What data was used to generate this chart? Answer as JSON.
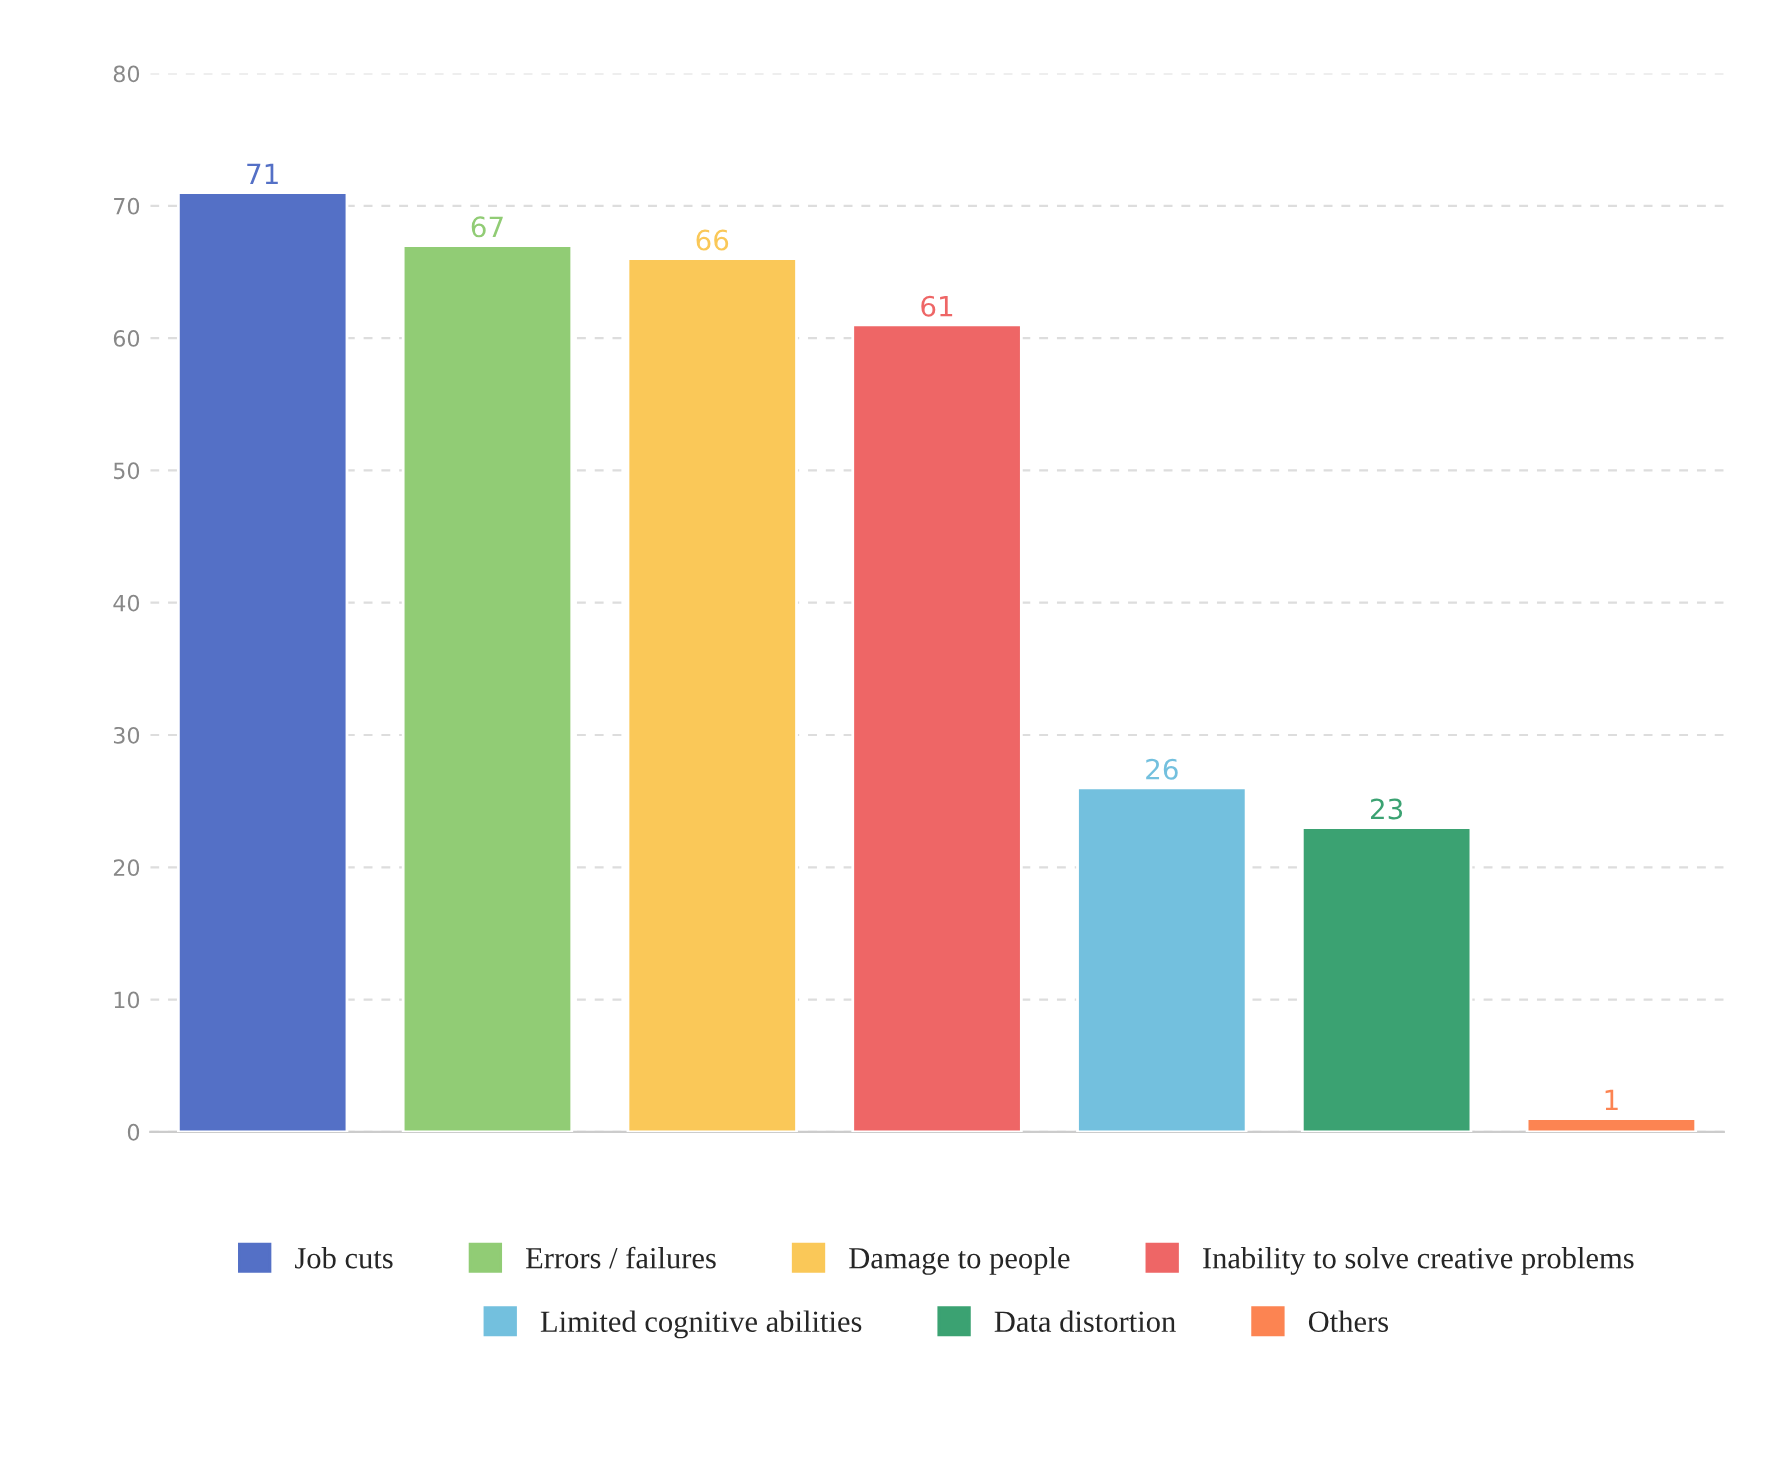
{
  "chart_data": {
    "type": "bar",
    "categories": [
      null,
      null,
      null,
      null,
      null,
      null,
      null
    ],
    "series": [
      {
        "name": "Job cuts",
        "color": "#5470c6",
        "values": [
          71,
          null,
          null,
          null,
          null,
          null,
          null
        ]
      },
      {
        "name": "Errors / failures",
        "color": "#91cc75",
        "values": [
          null,
          67,
          null,
          null,
          null,
          null,
          null
        ]
      },
      {
        "name": "Damage to people",
        "color": "#fac858",
        "values": [
          null,
          null,
          66,
          null,
          null,
          null,
          null
        ]
      },
      {
        "name": "Inability to solve creative problems",
        "color": "#ee6666",
        "values": [
          null,
          null,
          null,
          61,
          null,
          null,
          null
        ]
      },
      {
        "name": "Limited cognitive abilities",
        "color": "#73c0de",
        "values": [
          null,
          null,
          null,
          null,
          26,
          null,
          null
        ]
      },
      {
        "name": "Data distortion",
        "color": "#3ba272",
        "values": [
          null,
          null,
          null,
          null,
          null,
          23,
          null
        ]
      },
      {
        "name": "Others",
        "color": "#fc8452",
        "values": [
          null,
          null,
          null,
          null,
          null,
          null,
          1
        ]
      }
    ],
    "ylim": [
      0,
      80
    ],
    "yticks": [
      0,
      10,
      20,
      30,
      40,
      50,
      60,
      70,
      80
    ],
    "grid": "y",
    "legend": "bottom",
    "tick_labels": "y",
    "data_labels": true
  }
}
